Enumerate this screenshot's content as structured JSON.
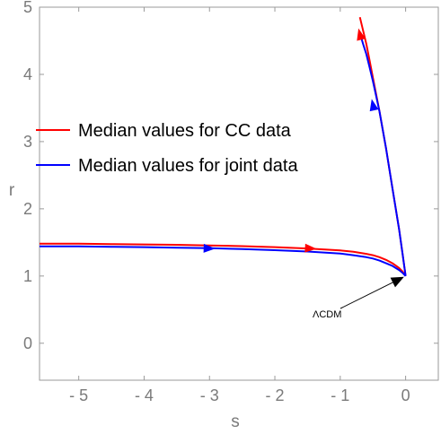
{
  "chart_data": {
    "type": "line",
    "title": "",
    "xlabel": "s",
    "ylabel": "r",
    "xlim": [
      -5.6,
      0.5
    ],
    "ylim": [
      -0.55,
      5.0
    ],
    "xticks": [
      -5,
      -4,
      -3,
      -2,
      -1,
      0
    ],
    "xtick_labels": [
      "- 5",
      "- 4",
      "- 3",
      "- 2",
      "- 1",
      "0"
    ],
    "yticks": [
      0,
      1,
      2,
      3,
      4,
      5
    ],
    "ytick_labels": [
      "0",
      "1",
      "2",
      "3",
      "4",
      "5"
    ],
    "grid": false,
    "legend_position": "upper-left",
    "series": [
      {
        "name": "Median values for CC data",
        "color": "#ff0000",
        "lower_branch": {
          "x": [
            -5.6,
            -5.0,
            -4.5,
            -4.0,
            -3.5,
            -3.0,
            -2.5,
            -2.0,
            -1.5,
            -1.0,
            -0.8,
            -0.6,
            -0.5,
            -0.4,
            -0.3,
            -0.2,
            -0.1,
            -0.05,
            0.0
          ],
          "y": [
            1.48,
            1.48,
            1.475,
            1.47,
            1.465,
            1.455,
            1.445,
            1.43,
            1.41,
            1.38,
            1.36,
            1.33,
            1.31,
            1.28,
            1.24,
            1.19,
            1.12,
            1.07,
            1.0
          ]
        },
        "upper_branch": {
          "x": [
            0.0,
            -0.05,
            -0.1,
            -0.2,
            -0.3,
            -0.4,
            -0.5,
            -0.55,
            -0.6,
            -0.65,
            -0.7
          ],
          "y": [
            1.0,
            1.35,
            1.7,
            2.3,
            2.9,
            3.45,
            3.95,
            4.2,
            4.45,
            4.65,
            4.85
          ]
        }
      },
      {
        "name": "Median values for joint data",
        "color": "#0000ff",
        "lower_branch": {
          "x": [
            -5.6,
            -5.0,
            -4.5,
            -4.0,
            -3.5,
            -3.0,
            -2.5,
            -2.0,
            -1.5,
            -1.0,
            -0.8,
            -0.6,
            -0.5,
            -0.4,
            -0.3,
            -0.2,
            -0.1,
            -0.05,
            0.0
          ],
          "y": [
            1.44,
            1.44,
            1.435,
            1.43,
            1.42,
            1.415,
            1.4,
            1.385,
            1.365,
            1.335,
            1.31,
            1.28,
            1.26,
            1.23,
            1.19,
            1.15,
            1.09,
            1.05,
            1.0
          ]
        },
        "upper_branch": {
          "x": [
            0.0,
            -0.05,
            -0.1,
            -0.2,
            -0.3,
            -0.4,
            -0.5,
            -0.55,
            -0.6,
            -0.65,
            -0.68
          ],
          "y": [
            1.0,
            1.35,
            1.7,
            2.3,
            2.9,
            3.45,
            3.9,
            4.1,
            4.3,
            4.45,
            4.55
          ]
        }
      }
    ],
    "direction_arrows": [
      {
        "series": 0,
        "x": -1.45,
        "y": 1.41
      },
      {
        "series": 0,
        "x": -0.7,
        "y": 4.6
      },
      {
        "series": 1,
        "x": -3.0,
        "y": 1.41
      },
      {
        "series": 1,
        "x": -0.5,
        "y": 3.55
      }
    ],
    "annotation": {
      "text": "ΛCDM",
      "point": {
        "x": 0.0,
        "y": 1.0
      },
      "color": "#000000"
    }
  }
}
